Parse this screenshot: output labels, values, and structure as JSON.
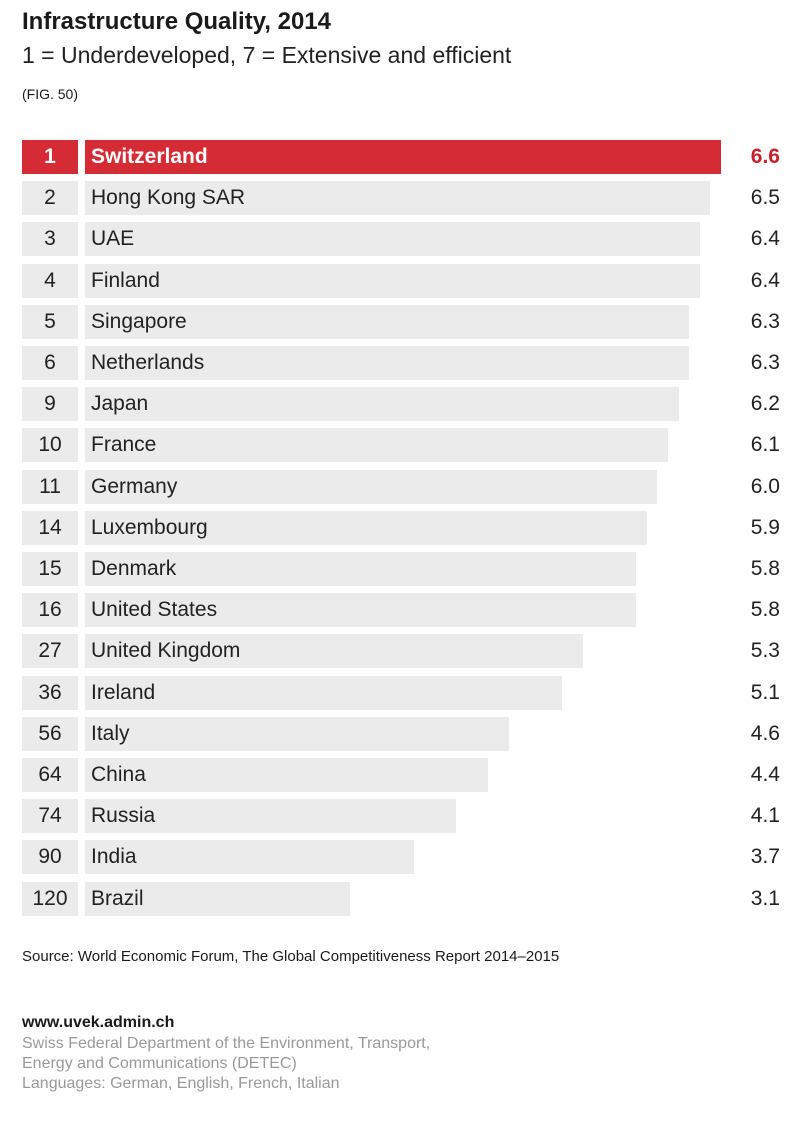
{
  "chart_data": {
    "type": "bar",
    "orientation": "horizontal",
    "title": "Infrastructure Quality, 2014",
    "subtitle": "1 = Underdeveloped, 7 = Extensive and efficient",
    "figure_label": "(FIG. 50)",
    "highlight_color": "#d52b35",
    "bar_color": "#ebebeb",
    "xlim": [
      0,
      7
    ],
    "rows": [
      {
        "rank": "1",
        "country": "Switzerland",
        "value": 6.6,
        "highlight": true
      },
      {
        "rank": "2",
        "country": "Hong Kong SAR",
        "value": 6.5
      },
      {
        "rank": "3",
        "country": "UAE",
        "value": 6.4
      },
      {
        "rank": "4",
        "country": "Finland",
        "value": 6.4
      },
      {
        "rank": "5",
        "country": "Singapore",
        "value": 6.3
      },
      {
        "rank": "6",
        "country": "Netherlands",
        "value": 6.3
      },
      {
        "rank": "9",
        "country": "Japan",
        "value": 6.2
      },
      {
        "rank": "10",
        "country": "France",
        "value": 6.1
      },
      {
        "rank": "11",
        "country": "Germany",
        "value": 6.0
      },
      {
        "rank": "14",
        "country": "Luxembourg",
        "value": 5.9
      },
      {
        "rank": "15",
        "country": "Denmark",
        "value": 5.8
      },
      {
        "rank": "16",
        "country": "United States",
        "value": 5.8
      },
      {
        "rank": "27",
        "country": "United Kingdom",
        "value": 5.3
      },
      {
        "rank": "36",
        "country": "Ireland",
        "value": 5.1
      },
      {
        "rank": "56",
        "country": "Italy",
        "value": 4.6
      },
      {
        "rank": "64",
        "country": "China",
        "value": 4.4
      },
      {
        "rank": "74",
        "country": "Russia",
        "value": 4.1
      },
      {
        "rank": "90",
        "country": "India",
        "value": 3.7
      },
      {
        "rank": "120",
        "country": "Brazil",
        "value": 3.1
      }
    ],
    "source": "Source: World Economic Forum, The Global Competitiveness Report 2014–2015"
  },
  "footer": {
    "url": "www.uvek.admin.ch",
    "org_line1": "Swiss Federal Department of the Environment, Transport,",
    "org_line2": "Energy and Communications (DETEC)",
    "languages": "Languages: German, English, French, Italian"
  }
}
